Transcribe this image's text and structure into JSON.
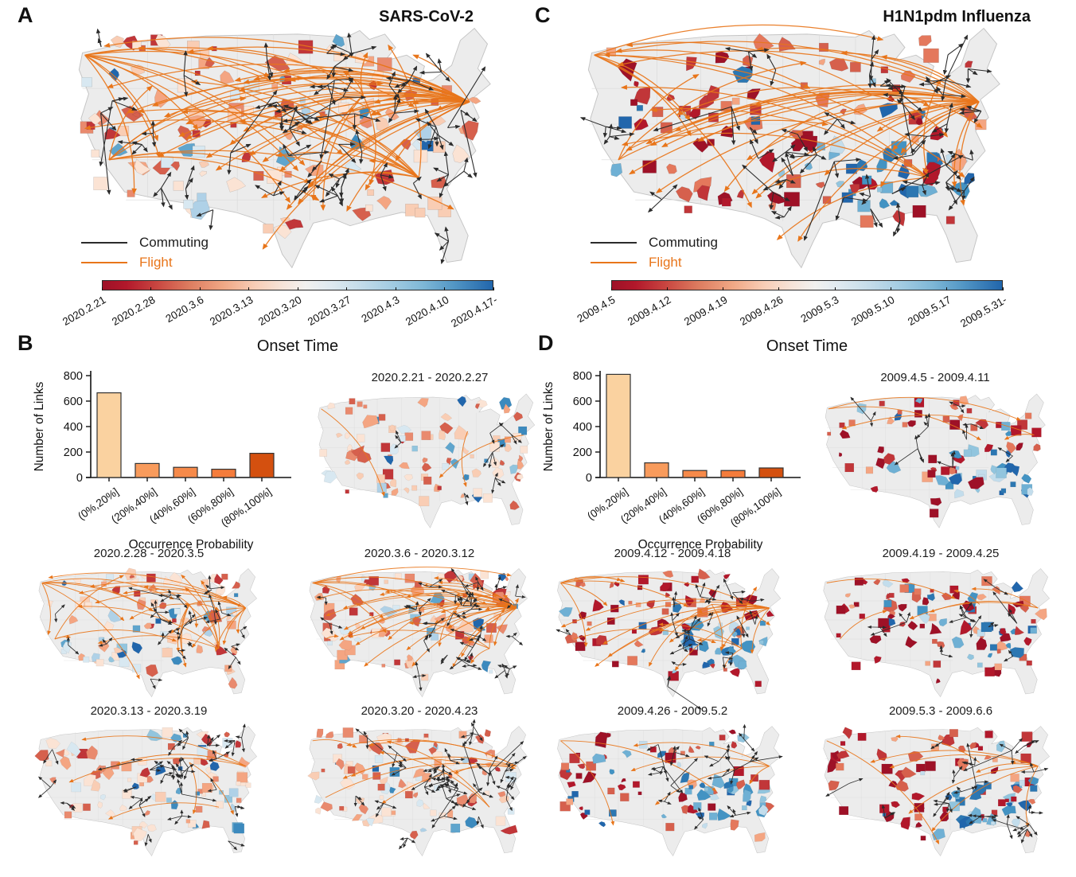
{
  "colors": {
    "flight": "#E8751A",
    "commuting": "#2b2b2b",
    "map_fill": "#ECECEC",
    "map_border": "#C4C4C4",
    "state_line": "#DADADA",
    "reds_sars": [
      "#FBE3D4",
      "#F9CDB4",
      "#F4A582",
      "#E98A6E",
      "#D6604D",
      "#C13639"
    ],
    "blues_sars": [
      "#D8E8F1",
      "#AFD1E7",
      "#92C5DE",
      "#5FA5CD",
      "#3C8ABE",
      "#2166AC"
    ],
    "reds_h1n1": [
      "#F4A582",
      "#E4785C",
      "#D6604D",
      "#C13639",
      "#B2182B",
      "#9E1127"
    ],
    "blues_h1n1": [
      "#C3DDEC",
      "#92C5DE",
      "#6FB0D4",
      "#4393C3",
      "#2C77B2",
      "#2166AC"
    ],
    "colorbar_gradient": "linear-gradient(to right,#9E1127 0%,#B2182B 6%,#C94741 14%,#DD7B5F 22%,#F0A885 31%,#F8CDB6 39%,#F6E3D8 46%,#F2F1EF 52%,#E0EAF0 58%,#C4DCEA 66%,#A3CCE2 74%,#7FB8D7 82%,#5397C5 90%,#3579B5 96%,#2166AC 100%)"
  },
  "panel_a": {
    "label": "A",
    "title": "SARS-CoV-2",
    "legend": {
      "commuting": "Commuting",
      "flight": "Flight"
    },
    "colorbar_ticks": [
      "2020.2.21",
      "2020.2.28",
      "2020.3.6",
      "2020.3.13",
      "2020.3.20",
      "2020.3.27",
      "2020.4.3",
      "2020.4.10",
      "2020.4.17-"
    ],
    "colorbar_label": "Onset Time",
    "map": {
      "seed": 11,
      "style": "sars",
      "patches": 135,
      "flights": 72,
      "commutes": 48,
      "big": true
    }
  },
  "panel_c": {
    "label": "C",
    "title": "H1N1pdm Influenza",
    "legend": {
      "commuting": "Commuting",
      "flight": "Flight"
    },
    "colorbar_ticks": [
      "2009.4.5",
      "2009.4.12",
      "2009.4.19",
      "2009.4.26",
      "2009.5.3",
      "2009.5.10",
      "2009.5.17",
      "2009.5.31-"
    ],
    "colorbar_label": "Onset Time",
    "map": {
      "seed": 21,
      "style": "h1n1",
      "patches": 120,
      "flights": 48,
      "commutes": 42,
      "big": true
    }
  },
  "panel_b": {
    "label": "B",
    "maps": [
      {
        "title": "2020.2.21 - 2020.2.27",
        "map": {
          "seed": 31,
          "style": "sars",
          "patches": 95,
          "flights": 3,
          "commutes": 6,
          "big": false
        }
      },
      {
        "title": "2020.2.28 - 2020.3.5",
        "map": {
          "seed": 41,
          "style": "sars",
          "patches": 90,
          "flights": 34,
          "commutes": 22,
          "big": false
        }
      },
      {
        "title": "2020.3.6 - 2020.3.12",
        "map": {
          "seed": 51,
          "style": "sars",
          "patches": 95,
          "flights": 44,
          "commutes": 28,
          "big": false
        }
      },
      {
        "title": "2020.3.13 - 2020.3.19",
        "map": {
          "seed": 61,
          "style": "sars",
          "patches": 100,
          "flights": 6,
          "commutes": 26,
          "big": false
        }
      },
      {
        "title": "2020.3.20 - 2020.4.23",
        "map": {
          "seed": 71,
          "style": "sars",
          "patches": 100,
          "flights": 10,
          "commutes": 30,
          "big": false
        }
      }
    ]
  },
  "panel_d": {
    "label": "D",
    "maps": [
      {
        "title": "2009.4.5 - 2009.4.11",
        "map": {
          "seed": 81,
          "style": "h1n1",
          "patches": 85,
          "flights": 4,
          "commutes": 8,
          "big": false
        }
      },
      {
        "title": "2009.4.12 - 2009.4.18",
        "map": {
          "seed": 91,
          "style": "h1n1",
          "patches": 95,
          "flights": 26,
          "commutes": 18,
          "big": false
        }
      },
      {
        "title": "2009.4.19 - 2009.4.25",
        "map": {
          "seed": 101,
          "style": "h1n1",
          "patches": 95,
          "flights": 6,
          "commutes": 10,
          "big": false
        }
      },
      {
        "title": "2009.4.26 - 2009.5.2",
        "map": {
          "seed": 111,
          "style": "h1n1",
          "patches": 90,
          "flights": 6,
          "commutes": 14,
          "big": false
        }
      },
      {
        "title": "2009.5.3 - 2009.6.6",
        "map": {
          "seed": 121,
          "style": "h1n1",
          "patches": 95,
          "flights": 9,
          "commutes": 18,
          "big": false
        }
      }
    ]
  },
  "chart_data": [
    {
      "type": "bar",
      "panel": "B",
      "title": "",
      "categories": [
        "(0%,20%]",
        "(20%,40%]",
        "(40%,60%]",
        "(60%,80%]",
        "(80%,100%]"
      ],
      "values": [
        665,
        110,
        80,
        65,
        190
      ],
      "xlabel": "Occurrence Probability",
      "ylabel": "Number of Links",
      "ylim": [
        0,
        800
      ],
      "yticks": [
        0,
        200,
        400,
        600,
        800
      ],
      "bar_colors": [
        "#FAD2A0",
        "#F89B5C",
        "#F68A4A",
        "#F47C3C",
        "#D4500F"
      ],
      "legend_position": "none",
      "grid": false
    },
    {
      "type": "bar",
      "panel": "D",
      "title": "",
      "categories": [
        "(0%,20%]",
        "(20%,40%]",
        "(40%,60%]",
        "(60%,80%]",
        "(80%,100%]"
      ],
      "values": [
        810,
        115,
        55,
        55,
        75
      ],
      "xlabel": "Occurrence Probability",
      "ylabel": "Number of Links",
      "ylim": [
        0,
        800
      ],
      "yticks": [
        0,
        200,
        400,
        600,
        800
      ],
      "bar_colors": [
        "#FAD2A0",
        "#F89B5C",
        "#F68A4A",
        "#F47C3C",
        "#D4500F"
      ],
      "legend_position": "none",
      "grid": false
    }
  ]
}
